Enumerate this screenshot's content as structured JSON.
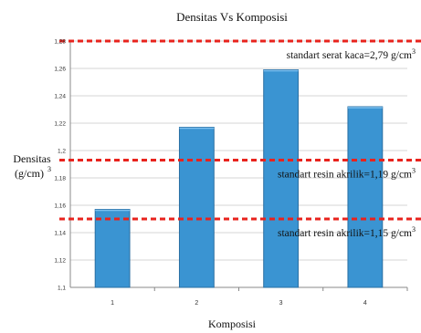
{
  "chart_data": {
    "type": "bar",
    "title": "Densitas Vs Komposisi",
    "xlabel": "Komposisi",
    "ylabel": [
      "Densitas",
      "(g/cm)"
    ],
    "ylabel_sup": "3",
    "categories": [
      "1",
      "2",
      "3",
      "4"
    ],
    "values": [
      1.157,
      1.217,
      1.259,
      1.232
    ],
    "ylim": [
      1.1,
      1.28
    ],
    "yticks": [
      "1,1",
      "1,12",
      "1,14",
      "1,16",
      "1,18",
      "1,2",
      "1,22",
      "1,24",
      "1,26",
      "1,28"
    ],
    "grid": true,
    "bar_color": "#3a94d2",
    "bar_edge_color": "#2a6fa3",
    "reference_lines": [
      {
        "y": 1.28,
        "label": "standart serat kaca=2,79 g/cm",
        "sup": "3",
        "color": "#e8231d"
      },
      {
        "y": 1.193,
        "label": "standart resin akrilik=1,19 g/cm",
        "sup": "3",
        "color": "#e8231d"
      },
      {
        "y": 1.15,
        "label": "standart resin akrilik=1,15 g/cm",
        "sup": "3",
        "color": "#e8231d"
      }
    ]
  }
}
